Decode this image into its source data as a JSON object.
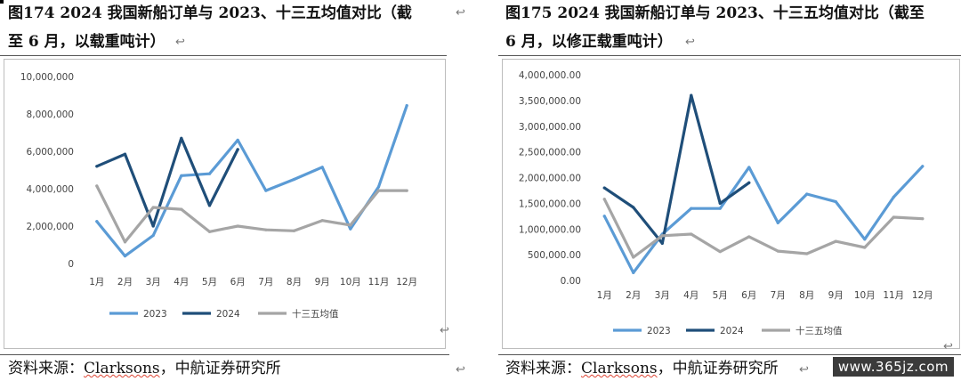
{
  "left": {
    "title_line1": "图174 2024 我国新船订单与 2023、十三五均值对比（截",
    "title_line2": "至 6 月，以载重吨计）",
    "source_prefix": "资料来源：",
    "source_name": "Clarksons",
    "source_suffix": "，中航证券研究所"
  },
  "right": {
    "title_line1": "图175 2024 我国新船订单与 2023、十三五均值对比（截至",
    "title_line2": "6 月，以修正载重吨计）",
    "source_prefix": "资料来源：",
    "source_name": "Clarksons",
    "source_suffix": "，中航证券研究所"
  },
  "return_mark": "↩",
  "watermark": "www.365jz.com",
  "chart_data": [
    {
      "type": "line",
      "categories": [
        "1月",
        "2月",
        "3月",
        "4月",
        "5月",
        "6月",
        "7月",
        "8月",
        "9月",
        "10月",
        "11月",
        "12月"
      ],
      "ylim": [
        0,
        10000000
      ],
      "yticks": [
        "0",
        "2,000,000",
        "4,000,000",
        "6,000,000",
        "8,000,000",
        "10,000,000"
      ],
      "ytick_values": [
        0,
        2000000,
        4000000,
        6000000,
        8000000,
        10000000
      ],
      "legend_position": "bottom",
      "grid": false,
      "series": [
        {
          "name": "2023",
          "color": "#5B9BD5",
          "values": [
            2250000,
            400000,
            1500000,
            4700000,
            4800000,
            6600000,
            3900000,
            4500000,
            5150000,
            1850000,
            4100000,
            8450000
          ]
        },
        {
          "name": "2024",
          "color": "#1F4E79",
          "values": [
            5200000,
            5850000,
            2000000,
            6700000,
            3100000,
            6100000,
            null,
            null,
            null,
            null,
            null,
            null
          ]
        },
        {
          "name": "十三五均值",
          "color": "#A5A5A5",
          "values": [
            4150000,
            1150000,
            3000000,
            2900000,
            1700000,
            2000000,
            1800000,
            1750000,
            2300000,
            2050000,
            3900000,
            3900000
          ]
        }
      ]
    },
    {
      "type": "line",
      "categories": [
        "1月",
        "2月",
        "3月",
        "4月",
        "5月",
        "6月",
        "7月",
        "8月",
        "9月",
        "10月",
        "11月",
        "12月"
      ],
      "ylim": [
        0,
        4000000
      ],
      "yticks": [
        "0.00",
        "500,000.00",
        "1,000,000.00",
        "1,500,000.00",
        "2,000,000.00",
        "2,500,000.00",
        "3,000,000.00",
        "3,500,000.00",
        "4,000,000.00"
      ],
      "ytick_values": [
        0,
        500000,
        1000000,
        1500000,
        2000000,
        2500000,
        3000000,
        3500000,
        4000000
      ],
      "legend_position": "bottom",
      "grid": false,
      "series": [
        {
          "name": "2023",
          "color": "#5B9BD5",
          "values": [
            1250000,
            150000,
            900000,
            1400000,
            1400000,
            2200000,
            1120000,
            1680000,
            1530000,
            800000,
            1620000,
            2220000
          ]
        },
        {
          "name": "2024",
          "color": "#1F4E79",
          "values": [
            1800000,
            1420000,
            720000,
            3600000,
            1500000,
            1900000,
            null,
            null,
            null,
            null,
            null,
            null
          ]
        },
        {
          "name": "十三五均值",
          "color": "#A5A5A5",
          "values": [
            1580000,
            450000,
            870000,
            900000,
            560000,
            850000,
            570000,
            520000,
            760000,
            640000,
            1230000,
            1200000
          ]
        }
      ]
    }
  ]
}
